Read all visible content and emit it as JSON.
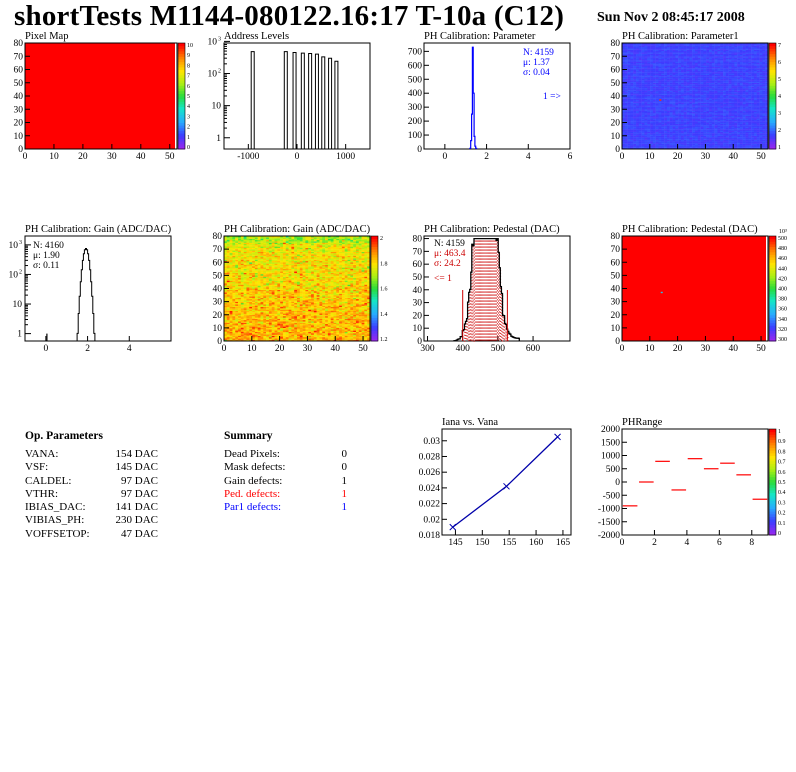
{
  "header": {
    "title": "shortTests M1144-080122.16:17 T-10a (C12)",
    "date": "Sun Nov  2 08:45:17 2008"
  },
  "panels": {
    "pixel_map": {
      "title": "Pixel Map",
      "x_ticks": [
        "0",
        "10",
        "20",
        "30",
        "40",
        "50"
      ],
      "y_ticks": [
        "0",
        "10",
        "20",
        "30",
        "40",
        "50",
        "60",
        "70",
        "80"
      ],
      "colorbar_ticks": [
        "0",
        "1",
        "2",
        "3",
        "4",
        "5",
        "6",
        "7",
        "8",
        "9",
        "10"
      ]
    },
    "address_levels": {
      "title": "Address Levels",
      "x_ticks": [
        "-1000",
        "0",
        "1000"
      ],
      "y_ticks": [
        "1",
        "10",
        "10",
        "10"
      ],
      "y_exps": [
        "",
        "",
        "2",
        "3"
      ]
    },
    "ph_param": {
      "title": "PH Calibration: Parameter",
      "x_ticks": [
        "0",
        "2",
        "4",
        "6"
      ],
      "y_ticks": [
        "0",
        "100",
        "200",
        "300",
        "400",
        "500",
        "600",
        "700"
      ],
      "stats": [
        "N: 4159",
        "μ: 1.37",
        "σ: 0.04"
      ],
      "arrow": "1 =>"
    },
    "ph_param1": {
      "title": "PH Calibration: Parameter1",
      "x_ticks": [
        "0",
        "10",
        "20",
        "30",
        "40",
        "50"
      ],
      "y_ticks": [
        "0",
        "10",
        "20",
        "30",
        "40",
        "50",
        "60",
        "70",
        "80"
      ],
      "colorbar_ticks": [
        "1",
        "2",
        "3",
        "4",
        "5",
        "6",
        "7"
      ]
    },
    "gain_hist": {
      "title": "PH Calibration: Gain (ADC/DAC)",
      "x_ticks": [
        "0",
        "2",
        "4"
      ],
      "y_ticks": [
        "1",
        "10",
        "10",
        "10"
      ],
      "y_exps": [
        "",
        "",
        "2",
        "3"
      ],
      "stats": [
        "N: 4160",
        "μ: 1.90",
        "σ: 0.11"
      ]
    },
    "gain_map": {
      "title": "PH Calibration: Gain (ADC/DAC)",
      "x_ticks": [
        "0",
        "10",
        "20",
        "30",
        "40",
        "50"
      ],
      "y_ticks": [
        "0",
        "10",
        "20",
        "30",
        "40",
        "50",
        "60",
        "70",
        "80"
      ],
      "colorbar_ticks": [
        "1.2",
        "1.4",
        "1.6",
        "1.8",
        "2"
      ]
    },
    "pedestal_hist": {
      "title": "PH Calibration: Pedestal (DAC)",
      "x_ticks": [
        "300",
        "400",
        "500",
        "600"
      ],
      "y_ticks": [
        "0",
        "10",
        "20",
        "30",
        "40",
        "50",
        "60",
        "70",
        "80"
      ],
      "stats": [
        "N: 4159",
        "μ: 463.4",
        "σ: 24.2",
        "<= 1"
      ]
    },
    "pedestal_map": {
      "title": "PH Calibration: Pedestal (DAC)",
      "x_ticks": [
        "0",
        "10",
        "20",
        "30",
        "40",
        "50"
      ],
      "y_ticks": [
        "0",
        "10",
        "20",
        "30",
        "40",
        "50",
        "60",
        "70",
        "80"
      ],
      "colorbar_ticks": [
        "300",
        "320",
        "340",
        "360",
        "380",
        "400",
        "420",
        "440",
        "460",
        "480",
        "500"
      ],
      "colorbar_exp": "10³"
    },
    "iana": {
      "title": "Iana vs. Vana",
      "x_ticks": [
        "145",
        "150",
        "155",
        "160",
        "165"
      ],
      "y_ticks": [
        "0.018",
        "0.02",
        "0.022",
        "0.024",
        "0.026",
        "0.028",
        "0.03"
      ]
    },
    "phrange": {
      "title": "PHRange",
      "x_ticks": [
        "0",
        "2",
        "4",
        "6",
        "8"
      ],
      "y_ticks": [
        "-2000",
        "-1500",
        "-1000",
        "-500",
        "0",
        "500",
        "1000",
        "1500",
        "2000"
      ],
      "colorbar_ticks": [
        "0",
        "0.1",
        "0.2",
        "0.3",
        "0.4",
        "0.5",
        "0.6",
        "0.7",
        "0.8",
        "0.9",
        "1"
      ]
    }
  },
  "op_params": {
    "heading": "Op. Parameters",
    "rows": [
      {
        "name": "VANA:",
        "value": "154 DAC"
      },
      {
        "name": "VSF:",
        "value": "145 DAC"
      },
      {
        "name": "CALDEL:",
        "value": "97 DAC"
      },
      {
        "name": "VTHR:",
        "value": "97 DAC"
      },
      {
        "name": "IBIAS_DAC:",
        "value": "141 DAC"
      },
      {
        "name": "VIBIAS_PH:",
        "value": "230 DAC"
      },
      {
        "name": "VOFFSETOP:",
        "value": "47 DAC"
      }
    ]
  },
  "summary": {
    "heading": "Summary",
    "rows": [
      {
        "name": "Dead Pixels:",
        "value": "0",
        "color": "#000000"
      },
      {
        "name": "Mask defects:",
        "value": "0",
        "color": "#000000"
      },
      {
        "name": "Gain defects:",
        "value": "1",
        "color": "#000000"
      },
      {
        "name": "Ped. defects:",
        "value": "1",
        "color": "#ff0000"
      },
      {
        "name": "Par1 defects:",
        "value": "1",
        "color": "#0000ff"
      }
    ]
  },
  "chart_data": [
    {
      "type": "heatmap",
      "title": "Pixel Map",
      "xlim": [
        0,
        52
      ],
      "ylim": [
        0,
        80
      ],
      "zlim": [
        0,
        10
      ],
      "value_all_pixels": 10
    },
    {
      "type": "bar",
      "title": "Address Levels",
      "xlim": [
        -1500,
        1500
      ],
      "log_y": true,
      "peaks_x": [
        -900,
        -220,
        -40,
        130,
        280,
        420,
        550,
        690,
        820
      ],
      "peak_y": [
        480,
        480,
        450,
        430,
        420,
        400,
        330,
        300,
        240
      ]
    },
    {
      "type": "bar",
      "title": "PH Calibration: Parameter",
      "xlim": [
        -1,
        6
      ],
      "ylim": [
        0,
        760
      ],
      "series": [
        {
          "x": [
            1.22,
            1.26,
            1.3,
            1.34,
            1.38,
            1.42,
            1.46,
            1.5
          ],
          "values": [
            5,
            60,
            250,
            730,
            400,
            90,
            20,
            5
          ]
        }
      ]
    },
    {
      "type": "heatmap",
      "title": "PH Calibration: Parameter1",
      "xlim": [
        0,
        52
      ],
      "ylim": [
        0,
        80
      ],
      "zlim": [
        1,
        7
      ],
      "typical_value": 1.9
    },
    {
      "type": "bar",
      "title": "PH Calibration: Gain (ADC/DAC)",
      "xlim": [
        -1,
        6
      ],
      "log_y": true,
      "mean": 1.9,
      "sigma": 0.11,
      "N": 4160
    },
    {
      "type": "heatmap",
      "title": "PH Calibration: Gain (ADC/DAC)",
      "xlim": [
        0,
        52
      ],
      "ylim": [
        0,
        80
      ],
      "zlim": [
        1.2,
        2.1
      ]
    },
    {
      "type": "bar",
      "title": "PH Calibration: Pedestal (DAC)",
      "xlim": [
        300,
        700
      ],
      "ylim": [
        0,
        82
      ],
      "mean": 463.4,
      "sigma": 24.2,
      "N": 4159,
      "cut_lines": [
        400,
        527
      ]
    },
    {
      "type": "heatmap",
      "title": "PH Calibration: Pedestal (DAC)",
      "xlim": [
        0,
        52
      ],
      "ylim": [
        0,
        80
      ],
      "zlim": [
        300,
        500
      ]
    },
    {
      "type": "line",
      "title": "Iana vs. Vana",
      "xlim": [
        142.5,
        166.5
      ],
      "ylim": [
        0.018,
        0.0315
      ],
      "series": [
        {
          "x": [
            144.5,
            154.5,
            164
          ],
          "values": [
            0.019,
            0.0242,
            0.0305
          ]
        }
      ]
    },
    {
      "type": "scatter",
      "title": "PHRange",
      "xlim": [
        0,
        9
      ],
      "ylim": [
        -2000,
        2000
      ],
      "series": [
        {
          "x": [
            0.5,
            1.5,
            2.5,
            3.5,
            4.5,
            5.5,
            6.5,
            7.5,
            8.5
          ],
          "values": [
            -900,
            0,
            780,
            -300,
            880,
            500,
            710,
            270,
            -650
          ]
        }
      ]
    }
  ]
}
